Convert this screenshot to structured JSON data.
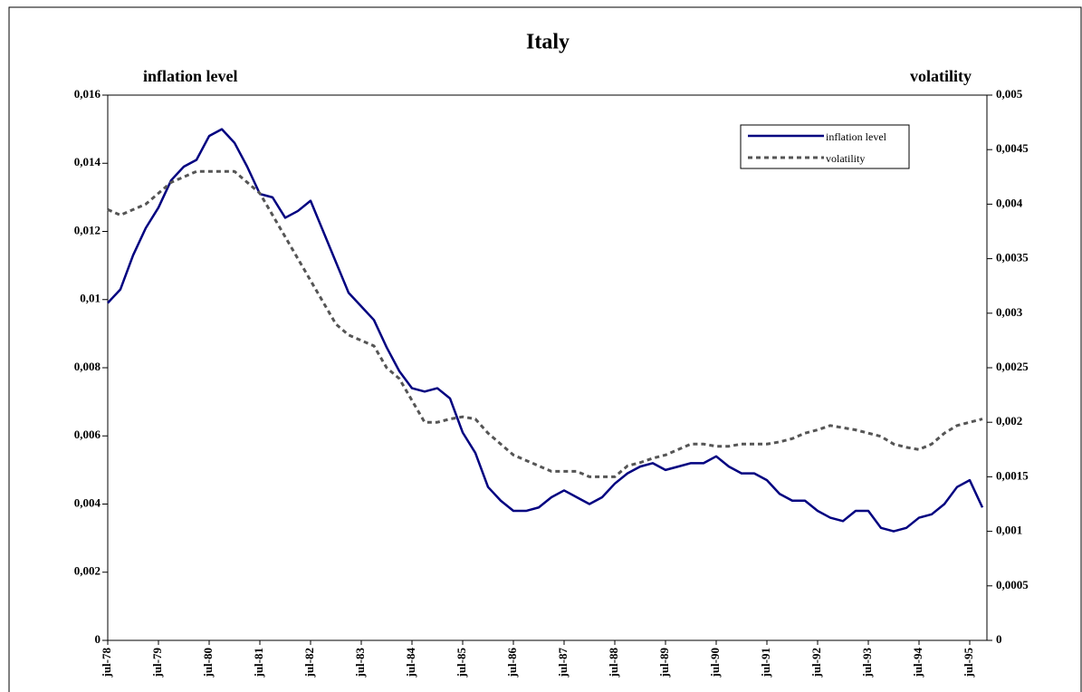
{
  "chart_data": {
    "type": "line",
    "title": "Italy",
    "ylabel": "inflation level",
    "y2label": "volatility",
    "categories": [
      "jul-78",
      null,
      null,
      null,
      "jul-79",
      null,
      null,
      null,
      "jul-80",
      null,
      null,
      null,
      "jul-81",
      null,
      null,
      null,
      "jul-82",
      null,
      null,
      null,
      "jul-83",
      null,
      null,
      null,
      "jul-84",
      null,
      null,
      null,
      "jul-85",
      null,
      null,
      null,
      "jul-86",
      null,
      null,
      null,
      "jul-87",
      null,
      null,
      null,
      "jul-88",
      null,
      null,
      null,
      "jul-89",
      null,
      null,
      null,
      "jul-90",
      null,
      null,
      null,
      "jul-91",
      null,
      null,
      null,
      "jul-92",
      null,
      null,
      null,
      "jul-93",
      null,
      null,
      null,
      "jul-94",
      null,
      null,
      null,
      "jul-95",
      null
    ],
    "series": [
      {
        "name": "inflation level",
        "color": "#000080",
        "dash": false,
        "values": [
          0.0099,
          0.0103,
          0.0113,
          0.0121,
          0.0127,
          0.0135,
          0.0139,
          0.0141,
          0.0148,
          0.015,
          0.0146,
          0.0139,
          0.0131,
          0.013,
          0.0124,
          0.0126,
          0.0129,
          0.012,
          0.0111,
          0.0102,
          0.0098,
          0.0094,
          0.0086,
          0.0079,
          0.0074,
          0.0073,
          0.0074,
          0.0071,
          0.0061,
          0.0055,
          0.0045,
          0.0041,
          0.0038,
          0.0038,
          0.0039,
          0.0042,
          0.0044,
          0.0042,
          0.004,
          0.0042,
          0.0046,
          0.0049,
          0.0051,
          0.0052,
          0.005,
          0.0051,
          0.0052,
          0.0052,
          0.0054,
          0.0051,
          0.0049,
          0.0049,
          0.0047,
          0.0043,
          0.0041,
          0.0041,
          0.0038,
          0.0036,
          0.0035,
          0.0038,
          0.0038,
          0.0033,
          0.0032,
          0.0033,
          0.0036,
          0.0037,
          0.004,
          0.0045,
          0.0047,
          0.0039
        ]
      },
      {
        "name": "volatility",
        "color": "#555555",
        "dash": true,
        "axis": "y2",
        "values": [
          0.00395,
          0.0039,
          0.00395,
          0.004,
          0.0041,
          0.0042,
          0.00425,
          0.0043,
          0.0043,
          0.0043,
          0.0043,
          0.0042,
          0.0041,
          0.0039,
          0.0037,
          0.0035,
          0.0033,
          0.0031,
          0.0029,
          0.0028,
          0.00275,
          0.0027,
          0.0025,
          0.0024,
          0.0022,
          0.002,
          0.002,
          0.00203,
          0.00205,
          0.00203,
          0.0019,
          0.0018,
          0.0017,
          0.00165,
          0.0016,
          0.00155,
          0.00155,
          0.00155,
          0.0015,
          0.0015,
          0.0015,
          0.0016,
          0.00163,
          0.00167,
          0.0017,
          0.00175,
          0.0018,
          0.0018,
          0.00178,
          0.00178,
          0.0018,
          0.0018,
          0.0018,
          0.00182,
          0.00185,
          0.0019,
          0.00193,
          0.00197,
          0.00195,
          0.00193,
          0.0019,
          0.00187,
          0.0018,
          0.00177,
          0.00175,
          0.0018,
          0.0019,
          0.00197,
          0.002,
          0.00203
        ]
      }
    ],
    "ylim": [
      0,
      0.016
    ],
    "yticks": [
      0,
      {
        "value": 0.002,
        "label": "0,002"
      },
      {
        "value": 0.004,
        "label": "0,004"
      },
      {
        "value": 0.006,
        "label": "0,006"
      },
      {
        "value": 0.008,
        "label": "0,008"
      },
      {
        "value": 0.01,
        "label": "0,01"
      },
      {
        "value": 0.012,
        "label": "0,012"
      },
      {
        "value": 0.014,
        "label": "0,014"
      },
      {
        "value": 0.016,
        "label": "0,016"
      }
    ],
    "y2lim": [
      0,
      0.005
    ],
    "y2ticks": [
      0,
      {
        "value": 0.0005,
        "label": "0,0005"
      },
      {
        "value": 0.001,
        "label": "0,001"
      },
      {
        "value": 0.0015,
        "label": "0,0015"
      },
      {
        "value": 0.002,
        "label": "0,002"
      },
      {
        "value": 0.0025,
        "label": "0,0025"
      },
      {
        "value": 0.003,
        "label": "0,003"
      },
      {
        "value": 0.0035,
        "label": "0,0035"
      },
      {
        "value": 0.004,
        "label": "0,004"
      },
      {
        "value": 0.0045,
        "label": "0,0045"
      },
      {
        "value": 0.005,
        "label": "0,005"
      }
    ],
    "legend": "upper right"
  }
}
